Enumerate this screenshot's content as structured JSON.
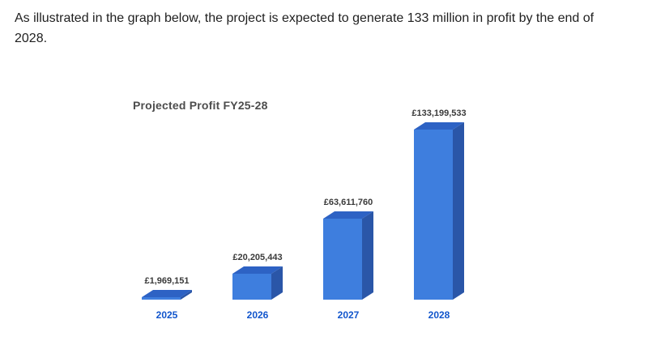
{
  "page": {
    "paragraph": "As illustrated in the graph below, the project is expected to generate 133 million in profit by the end of 2028."
  },
  "chart_data": {
    "type": "bar",
    "style": "3d",
    "title": "Projected Profit FY25-28",
    "categories": [
      "2025",
      "2026",
      "2027",
      "2028"
    ],
    "values": [
      1969151,
      20205443,
      63611760,
      133199533
    ],
    "value_labels": [
      "£1,969,151",
      "£20,205,443",
      "£63,611,760",
      "£133,199,533"
    ],
    "currency": "£",
    "xlabel": "",
    "ylabel": "",
    "ylim": [
      0,
      140000000
    ],
    "grid": false,
    "legend": "none",
    "bar_color": "#3e7ede",
    "bar_side_color": "#2a56a8",
    "bar_top_color": "#2d62c4",
    "category_label_color": "#1155cc",
    "value_label_color": "#3a3a3a",
    "title_color": "#4d4d4d"
  }
}
